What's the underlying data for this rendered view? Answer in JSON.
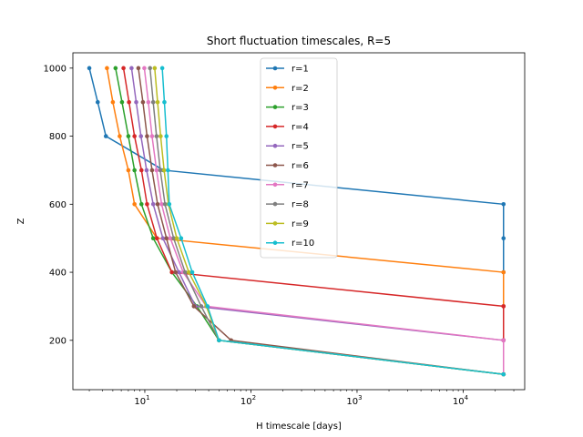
{
  "chart_data": {
    "type": "line",
    "title": "Short fluctuation timescales, R=5",
    "xlabel": "H timescale [days]",
    "ylabel": "Z",
    "xscale": "log",
    "xlim": [
      2.1,
      38000
    ],
    "ylim": [
      55,
      1045
    ],
    "xticks": [
      {
        "value": 10,
        "label": "10",
        "exp": "1"
      },
      {
        "value": 100,
        "label": "10",
        "exp": "2"
      },
      {
        "value": 1000,
        "label": "10",
        "exp": "3"
      },
      {
        "value": 10000,
        "label": "10",
        "exp": "4"
      }
    ],
    "yticks": [
      {
        "value": 200,
        "label": "200"
      },
      {
        "value": 400,
        "label": "400"
      },
      {
        "value": 600,
        "label": "600"
      },
      {
        "value": 800,
        "label": "800"
      },
      {
        "value": 1000,
        "label": "1000"
      }
    ],
    "legend_position": "top-center",
    "grid": false,
    "y": [
      1000,
      900,
      800,
      700,
      600,
      500,
      400,
      300,
      200,
      100
    ],
    "series": [
      {
        "name": "r=1",
        "color": "#1f77b4",
        "x": [
          3.0,
          3.6,
          4.3,
          15.0,
          24000,
          24000,
          24000,
          24000,
          24000,
          24000
        ]
      },
      {
        "name": "r=2",
        "color": "#ff7f0e",
        "x": [
          4.4,
          5.0,
          5.8,
          7.0,
          8.0,
          13.0,
          24000,
          24000,
          24000,
          24000
        ]
      },
      {
        "name": "r=3",
        "color": "#2ca02c",
        "x": [
          5.3,
          6.1,
          7.0,
          8.0,
          9.3,
          12.0,
          18.0,
          31.0,
          50.0,
          24000
        ]
      },
      {
        "name": "r=4",
        "color": "#d62728",
        "x": [
          6.3,
          7.1,
          8.0,
          9.3,
          10.5,
          13.0,
          18.0,
          24000,
          24000,
          24000
        ]
      },
      {
        "name": "r=5",
        "color": "#9467bd",
        "x": [
          7.5,
          8.3,
          9.2,
          10.4,
          12.0,
          14.8,
          21.0,
          30.0,
          24000,
          24000
        ]
      },
      {
        "name": "r=6",
        "color": "#8c564b",
        "x": [
          8.7,
          9.6,
          10.5,
          11.7,
          13.2,
          16.0,
          19.5,
          29.0,
          65.0,
          24000
        ]
      },
      {
        "name": "r=7",
        "color": "#e377c2",
        "x": [
          9.9,
          10.8,
          11.7,
          12.9,
          14.4,
          17.4,
          23.0,
          38.0,
          24000,
          24000
        ]
      },
      {
        "name": "r=8",
        "color": "#7f7f7f",
        "x": [
          11.2,
          12.0,
          12.9,
          14.0,
          15.5,
          18.7,
          24.0,
          34.0,
          50.0,
          24000
        ]
      },
      {
        "name": "r=9",
        "color": "#bcbd22",
        "x": [
          12.4,
          13.2,
          14.1,
          15.2,
          16.7,
          20.0,
          26.0,
          38.0,
          50.0,
          24000
        ]
      },
      {
        "name": "r=10",
        "color": "#17becf",
        "x": [
          14.6,
          15.3,
          16.0,
          16.5,
          17.0,
          22.0,
          28.0,
          39.0,
          50.0,
          24000
        ]
      }
    ]
  }
}
